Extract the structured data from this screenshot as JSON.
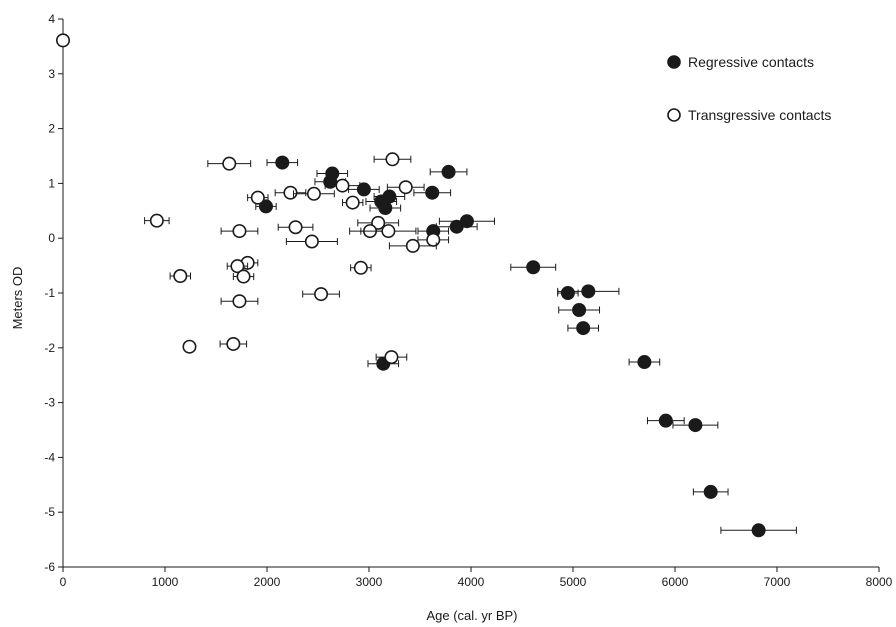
{
  "chart_data": {
    "type": "scatter",
    "title": "",
    "xlabel": "Age (cal. yr BP)",
    "ylabel": "Meters OD",
    "xlim": [
      0,
      8000
    ],
    "ylim": [
      -6,
      4
    ],
    "xticks": [
      0,
      1000,
      2000,
      3000,
      4000,
      5000,
      6000,
      7000,
      8000
    ],
    "yticks": [
      -6,
      -5,
      -4,
      -3,
      -2,
      -1,
      0,
      1,
      2,
      3,
      4
    ],
    "grid": false,
    "legend": "top-right",
    "error_bars": "horizontal (age)",
    "series": [
      {
        "name": "Regressive contacts",
        "marker": "filled circle",
        "color": "#1a1a1a",
        "points": [
          {
            "x": 2150,
            "y": 1.38,
            "xerr": 150
          },
          {
            "x": 2640,
            "y": 1.18,
            "xerr": 150
          },
          {
            "x": 2620,
            "y": 1.03,
            "xerr": 150
          },
          {
            "x": 3780,
            "y": 1.21,
            "xerr": 180
          },
          {
            "x": 2950,
            "y": 0.89,
            "xerr": 150
          },
          {
            "x": 3620,
            "y": 0.83,
            "xerr": 180
          },
          {
            "x": 3200,
            "y": 0.76,
            "xerr": 150
          },
          {
            "x": 3120,
            "y": 0.67,
            "xerr": 150
          },
          {
            "x": 3160,
            "y": 0.55,
            "xerr": 150
          },
          {
            "x": 1990,
            "y": 0.58,
            "xerr": 100
          },
          {
            "x": 3960,
            "y": 0.31,
            "xerr": 270
          },
          {
            "x": 3860,
            "y": 0.21,
            "xerr": 200
          },
          {
            "x": 3630,
            "y": 0.13,
            "xerr": 150
          },
          {
            "x": 4610,
            "y": -0.53,
            "xerr": 220
          },
          {
            "x": 5150,
            "y": -0.97,
            "xerr": 300
          },
          {
            "x": 4950,
            "y": -1.0,
            "xerr": 100
          },
          {
            "x": 5060,
            "y": -1.31,
            "xerr": 200
          },
          {
            "x": 5100,
            "y": -1.64,
            "xerr": 150
          },
          {
            "x": 5700,
            "y": -2.26,
            "xerr": 150
          },
          {
            "x": 3140,
            "y": -2.29,
            "xerr": 150
          },
          {
            "x": 5910,
            "y": -3.33,
            "xerr": 180
          },
          {
            "x": 6200,
            "y": -3.41,
            "xerr": 220
          },
          {
            "x": 6350,
            "y": -4.63,
            "xerr": 170
          },
          {
            "x": 6820,
            "y": -5.33,
            "xerr": 370
          }
        ]
      },
      {
        "name": "Transgressive contacts",
        "marker": "open circle",
        "color": "#1a1a1a",
        "points": [
          {
            "x": 0,
            "y": 3.61,
            "xerr": 0
          },
          {
            "x": 3230,
            "y": 1.44,
            "xerr": 180
          },
          {
            "x": 1630,
            "y": 1.36,
            "xerr": 210
          },
          {
            "x": 2740,
            "y": 0.96,
            "xerr": 170
          },
          {
            "x": 3360,
            "y": 0.93,
            "xerr": 180
          },
          {
            "x": 2230,
            "y": 0.83,
            "xerr": 150
          },
          {
            "x": 2460,
            "y": 0.81,
            "xerr": 200
          },
          {
            "x": 1910,
            "y": 0.74,
            "xerr": 100
          },
          {
            "x": 2840,
            "y": 0.65,
            "xerr": 100
          },
          {
            "x": 920,
            "y": 0.32,
            "xerr": 120
          },
          {
            "x": 3090,
            "y": 0.28,
            "xerr": 200
          },
          {
            "x": 2280,
            "y": 0.2,
            "xerr": 170
          },
          {
            "x": 1730,
            "y": 0.13,
            "xerr": 180
          },
          {
            "x": 3010,
            "y": 0.13,
            "xerr": 200
          },
          {
            "x": 3190,
            "y": 0.13,
            "xerr": 270
          },
          {
            "x": 2440,
            "y": -0.06,
            "xerr": 250
          },
          {
            "x": 3630,
            "y": -0.03,
            "xerr": 150
          },
          {
            "x": 3430,
            "y": -0.14,
            "xerr": 230
          },
          {
            "x": 1810,
            "y": -0.45,
            "xerr": 100
          },
          {
            "x": 1710,
            "y": -0.51,
            "xerr": 100
          },
          {
            "x": 2920,
            "y": -0.54,
            "xerr": 100
          },
          {
            "x": 1150,
            "y": -0.69,
            "xerr": 100
          },
          {
            "x": 1770,
            "y": -0.7,
            "xerr": 100
          },
          {
            "x": 2530,
            "y": -1.02,
            "xerr": 180
          },
          {
            "x": 1730,
            "y": -1.15,
            "xerr": 180
          },
          {
            "x": 1240,
            "y": -1.98,
            "xerr": 0
          },
          {
            "x": 1670,
            "y": -1.93,
            "xerr": 130
          },
          {
            "x": 3220,
            "y": -2.17,
            "xerr": 150
          }
        ]
      }
    ]
  }
}
